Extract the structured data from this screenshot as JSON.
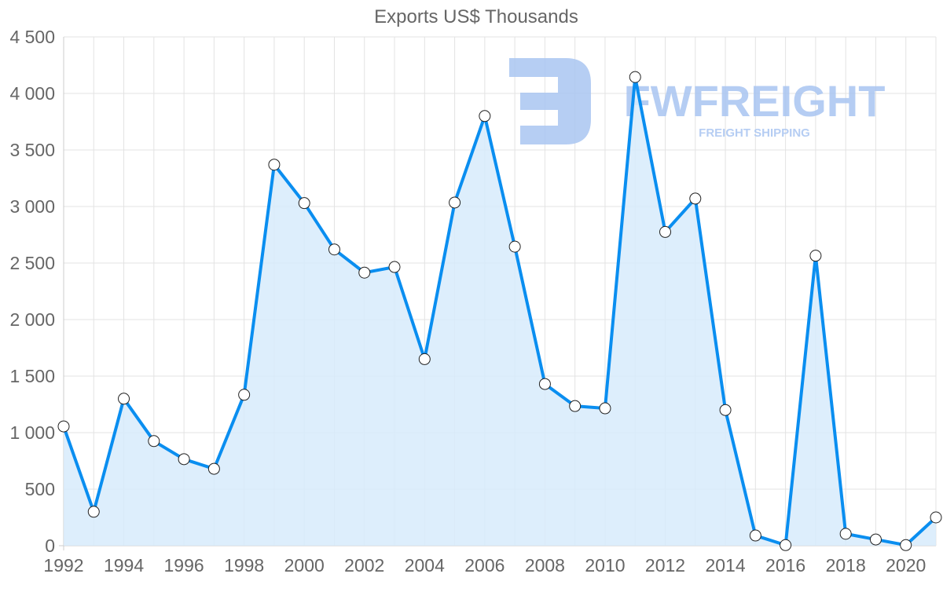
{
  "chart_data": {
    "type": "area",
    "title": "Exports US$ Thousands",
    "xlabel": "",
    "ylabel": "",
    "x": [
      1992,
      1993,
      1994,
      1995,
      1996,
      1997,
      1998,
      1999,
      2000,
      2001,
      2002,
      2003,
      2004,
      2005,
      2006,
      2007,
      2008,
      2009,
      2010,
      2011,
      2012,
      2013,
      2014,
      2015,
      2016,
      2017,
      2018,
      2019,
      2020,
      2021
    ],
    "series": [
      {
        "name": "Exports US$ Thousands",
        "values": [
          1055,
          300,
          1300,
          925,
          765,
          680,
          1335,
          3370,
          3030,
          2620,
          2415,
          2465,
          1650,
          3035,
          3800,
          2645,
          1430,
          1235,
          1215,
          4145,
          2775,
          3070,
          1200,
          90,
          5,
          2565,
          105,
          55,
          5,
          250
        ]
      }
    ],
    "ylim": [
      0,
      4500
    ],
    "yticks": [
      0,
      500,
      1000,
      1500,
      2000,
      2500,
      3000,
      3500,
      4000,
      4500
    ],
    "ytick_labels": [
      "0",
      "500",
      "1 000",
      "1 500",
      "2 000",
      "2 500",
      "3 000",
      "3 500",
      "4 000",
      "4 500"
    ],
    "xtick_labels": [
      "1992",
      "1994",
      "1996",
      "1998",
      "2000",
      "2002",
      "2004",
      "2006",
      "2008",
      "2010",
      "2012",
      "2014",
      "2016",
      "2018",
      "2020"
    ],
    "grid": true,
    "legend": "none",
    "colors": {
      "line": "#0a8ef0",
      "fill": "#d7ebfc",
      "grid": "#e3e3e3",
      "text": "#666666",
      "point_fill": "#ffffff",
      "point_stroke": "#222222"
    }
  },
  "watermark": {
    "brand": "FWFREIGHT",
    "tagline": "FREIGHT SHIPPING",
    "color": "#a9c5f1"
  }
}
